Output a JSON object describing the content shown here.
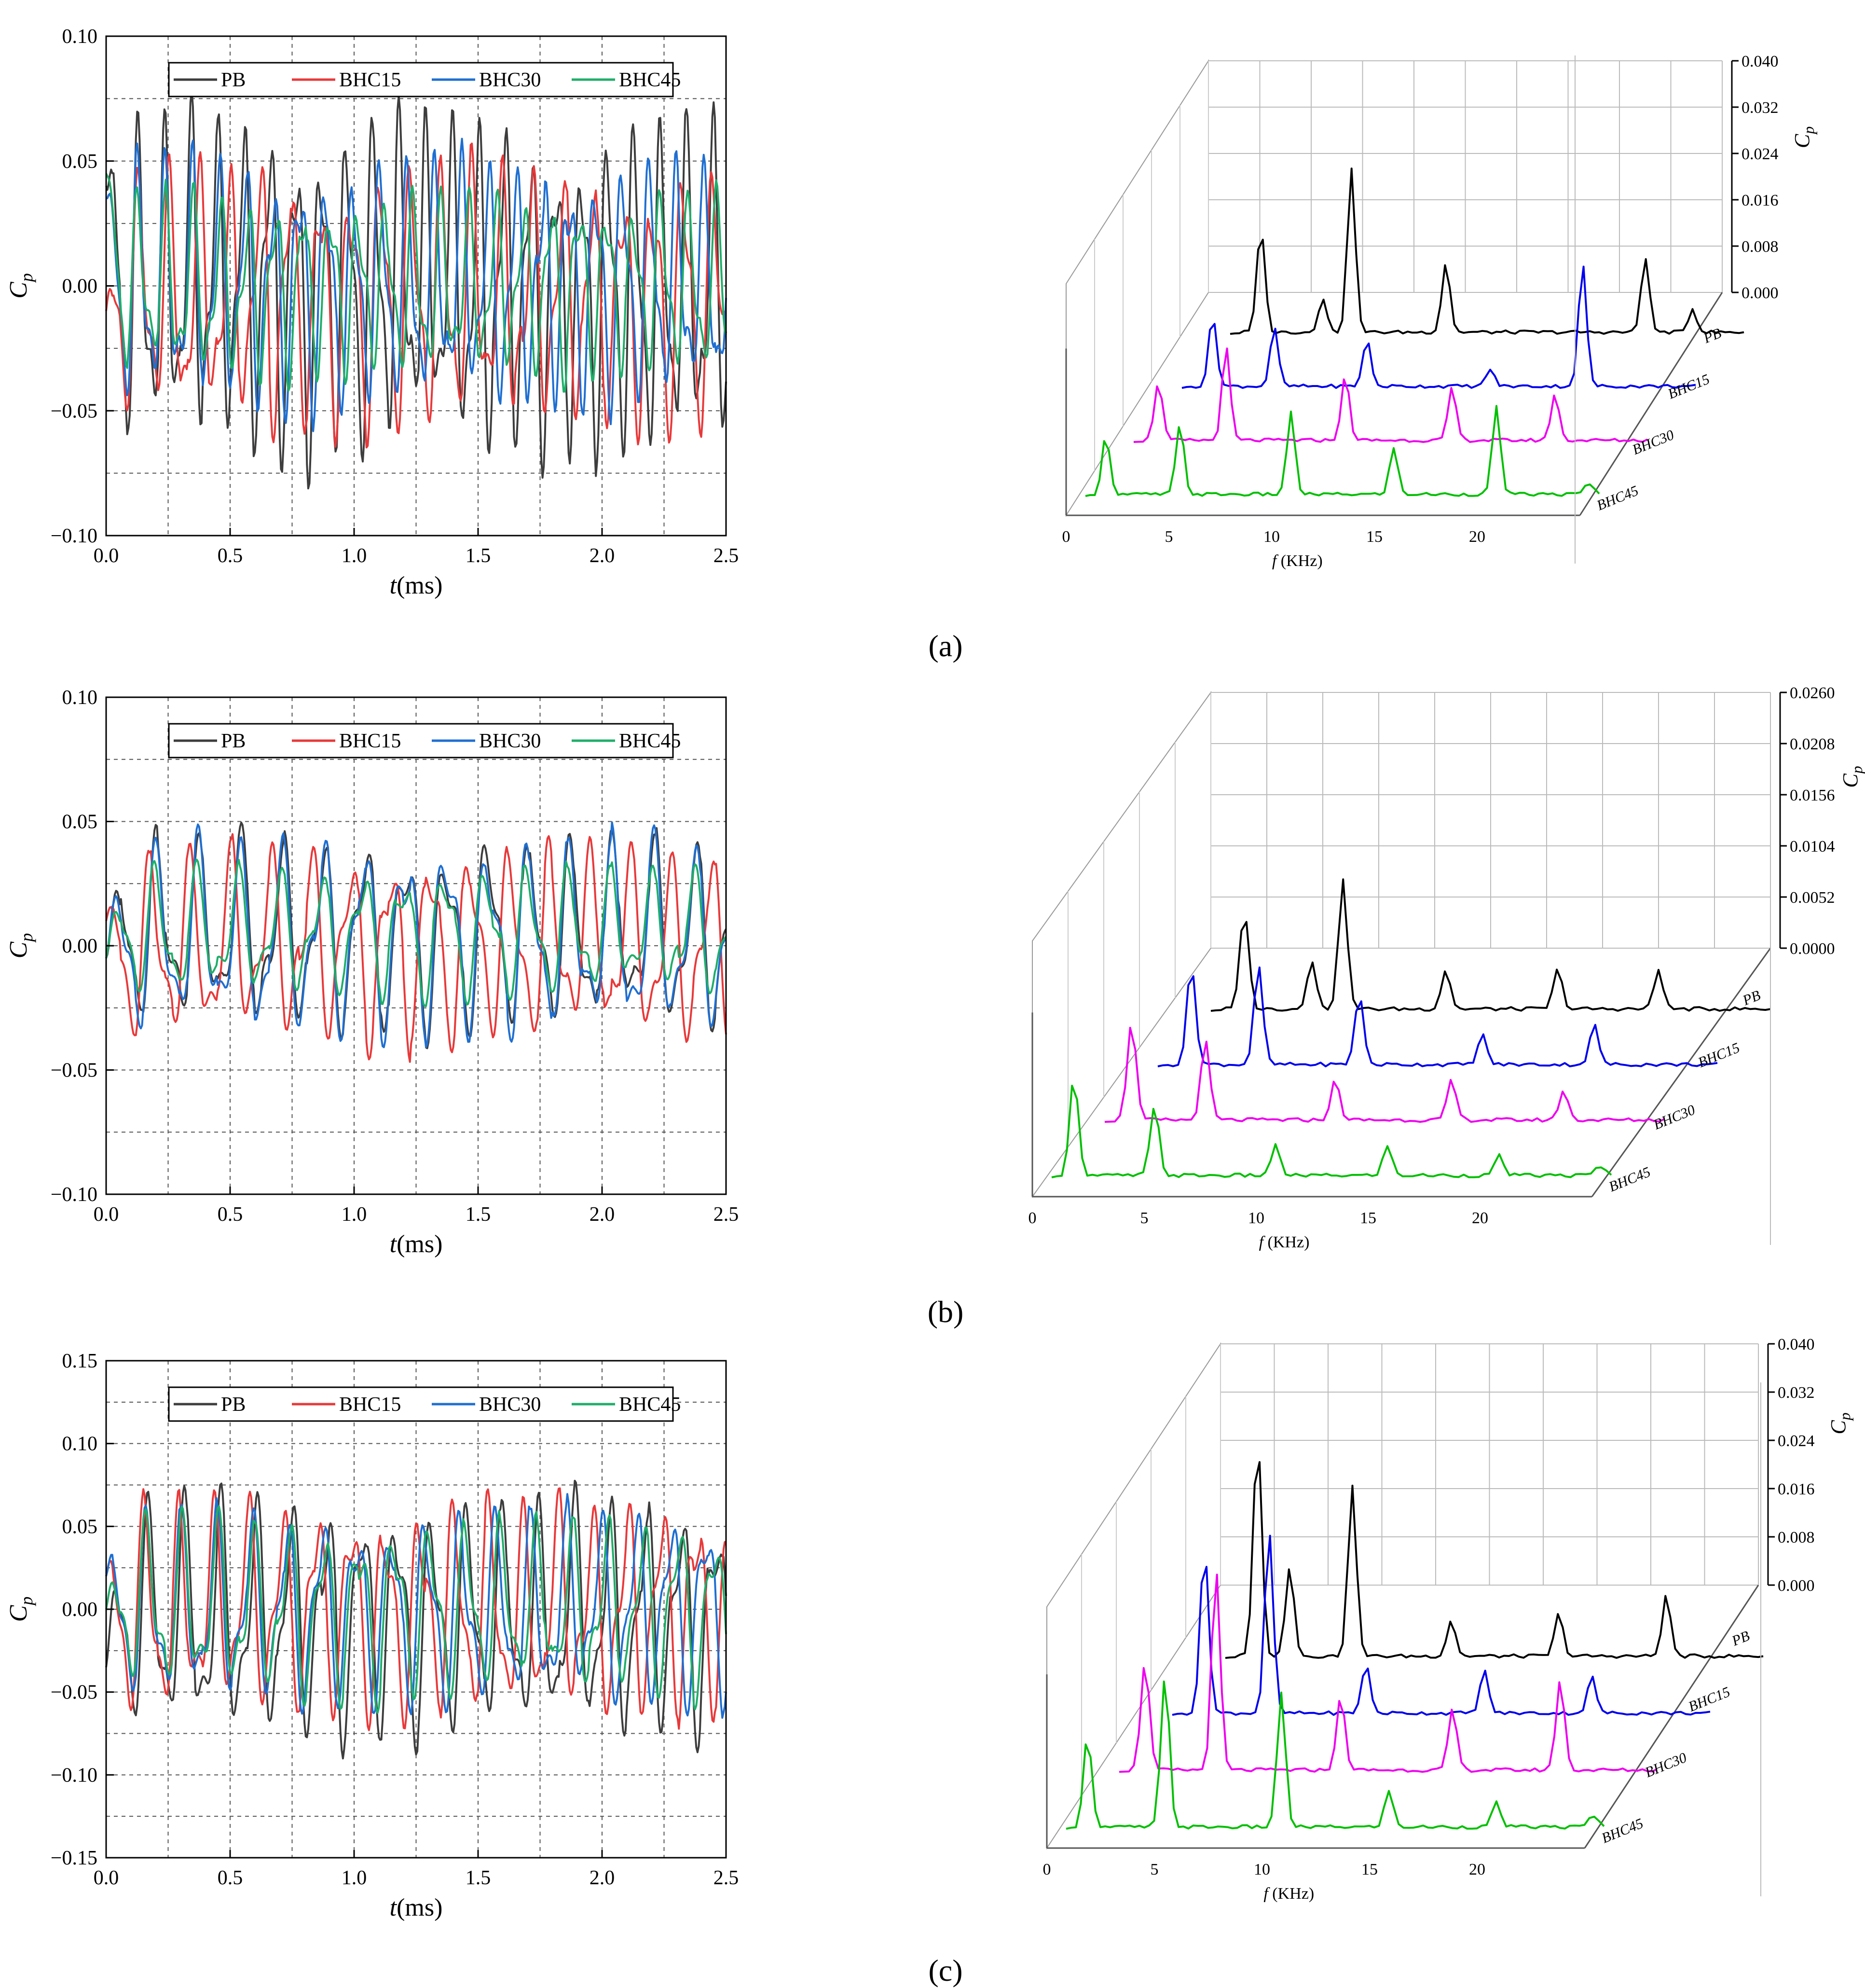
{
  "figure": {
    "panel_captions": [
      "(a)",
      "(b)",
      "(c)"
    ]
  },
  "chart_data": [
    {
      "id": "a-time",
      "type": "line",
      "panel": "a",
      "xlabel_italic": "t",
      "xlabel_unit": "(ms)",
      "ylabel": "C",
      "ylabel_sub": "p",
      "xlim": [
        0,
        2.5
      ],
      "ylim": [
        -0.1,
        0.1
      ],
      "xticks": [
        "0.0",
        "0.5",
        "1.0",
        "1.5",
        "2.0",
        "2.5"
      ],
      "yticks": [
        "-0.10",
        "-0.05",
        "0.00",
        "0.05",
        "0.10"
      ],
      "legend": [
        "PB",
        "BHC15",
        "BHC30",
        "BHC45"
      ],
      "colors": [
        "#3d3d3d",
        "#e8393a",
        "#1f6fd1",
        "#1fae6a"
      ],
      "series": [
        {
          "name": "PB",
          "amp": 0.052,
          "offset": 0.0,
          "freq": 9.5,
          "phase": 0.0,
          "start": 0.04
        },
        {
          "name": "BHC15",
          "amp": 0.04,
          "offset": -0.005,
          "freq": 8.2,
          "phase": 1.0,
          "start": -0.01
        },
        {
          "name": "BHC30",
          "amp": 0.038,
          "offset": 0.0,
          "freq": 9.2,
          "phase": 0.4,
          "start": 0.035
        },
        {
          "name": "BHC45",
          "amp": 0.028,
          "offset": 0.0,
          "freq": 9.0,
          "phase": 0.6,
          "start": 0.045
        }
      ]
    },
    {
      "id": "a-spectrum",
      "type": "line",
      "panel": "a",
      "xlabel_italic": "f",
      "xlabel_unit": " (KHz)",
      "zlabel": "C",
      "zlabel_sub": "p",
      "xlim": [
        0,
        25
      ],
      "zlim": [
        0,
        0.04
      ],
      "xticks": [
        "0",
        "5",
        "10",
        "15",
        "20"
      ],
      "zticks": [
        "0.040",
        "0.032",
        "0.024",
        "0.016",
        "0.008",
        "0.000"
      ],
      "series_labels": [
        "PB",
        "BHC15",
        "BHC30",
        "BHC45"
      ],
      "colors": [
        "#000000",
        "#0000ee",
        "#ee00ee",
        "#00c000"
      ],
      "peaks": [
        [
          [
            1.5,
            0.018
          ],
          [
            4.5,
            0.006
          ],
          [
            5.9,
            0.028
          ],
          [
            10.5,
            0.012
          ],
          [
            20.2,
            0.013
          ],
          [
            22.5,
            0.004
          ]
        ],
        [
          [
            1.5,
            0.012
          ],
          [
            4.5,
            0.01
          ],
          [
            9.0,
            0.008
          ],
          [
            15.0,
            0.003
          ],
          [
            19.5,
            0.021
          ]
        ],
        [
          [
            1.2,
            0.01
          ],
          [
            4.5,
            0.016
          ],
          [
            10.3,
            0.011
          ],
          [
            15.5,
            0.009
          ],
          [
            20.5,
            0.008
          ]
        ],
        [
          [
            1.0,
            0.01
          ],
          [
            4.6,
            0.012
          ],
          [
            10.0,
            0.014
          ],
          [
            15.0,
            0.008
          ],
          [
            20.0,
            0.015
          ],
          [
            24.5,
            0.002
          ]
        ]
      ]
    },
    {
      "id": "b-time",
      "type": "line",
      "panel": "b",
      "xlabel_italic": "t",
      "xlabel_unit": "(ms)",
      "ylabel": "C",
      "ylabel_sub": "p",
      "xlim": [
        0,
        2.5
      ],
      "ylim": [
        -0.1,
        0.1
      ],
      "xticks": [
        "0.0",
        "0.5",
        "1.0",
        "1.5",
        "2.0",
        "2.5"
      ],
      "yticks": [
        "-0.10",
        "-0.05",
        "0.00",
        "0.05",
        "0.10"
      ],
      "legend": [
        "PB",
        "BHC15",
        "BHC30",
        "BHC45"
      ],
      "colors": [
        "#3d3d3d",
        "#e8393a",
        "#1f6fd1",
        "#1fae6a"
      ],
      "series": [
        {
          "name": "PB",
          "amp": 0.03,
          "offset": 0.005,
          "freq": 6.0,
          "phase": 0.0,
          "start": -0.005
        },
        {
          "name": "BHC15",
          "amp": 0.03,
          "offset": 0.0,
          "freq": 6.2,
          "phase": 0.9,
          "start": 0.01
        },
        {
          "name": "BHC30",
          "amp": 0.03,
          "offset": 0.003,
          "freq": 6.0,
          "phase": 0.1,
          "start": -0.005
        },
        {
          "name": "BHC45",
          "amp": 0.02,
          "offset": 0.005,
          "freq": 6.0,
          "phase": 0.3,
          "start": -0.005
        }
      ]
    },
    {
      "id": "b-spectrum",
      "type": "line",
      "panel": "b",
      "xlabel_italic": "f",
      "xlabel_unit": " (KHz)",
      "zlabel": "C",
      "zlabel_sub": "p",
      "xlim": [
        0,
        25
      ],
      "zlim": [
        0,
        0.026
      ],
      "xticks": [
        "0",
        "5",
        "10",
        "15",
        "20"
      ],
      "zticks": [
        "0.0260",
        "0.0208",
        "0.0156",
        "0.0104",
        "0.0052",
        "0.0000"
      ],
      "series_labels": [
        "PB",
        "BHC15",
        "BHC30",
        "BHC45"
      ],
      "colors": [
        "#000000",
        "#0000ee",
        "#ee00ee",
        "#00c000"
      ],
      "peaks": [
        [
          [
            1.5,
            0.01
          ],
          [
            4.5,
            0.005
          ],
          [
            5.9,
            0.013
          ],
          [
            10.5,
            0.004
          ],
          [
            15.5,
            0.004
          ],
          [
            20.0,
            0.004
          ]
        ],
        [
          [
            1.5,
            0.01
          ],
          [
            4.5,
            0.01
          ],
          [
            9.0,
            0.007
          ],
          [
            14.5,
            0.003
          ],
          [
            19.5,
            0.004
          ]
        ],
        [
          [
            1.2,
            0.01
          ],
          [
            4.5,
            0.008
          ],
          [
            10.3,
            0.004
          ],
          [
            15.5,
            0.004
          ],
          [
            20.5,
            0.003
          ]
        ],
        [
          [
            1.0,
            0.01
          ],
          [
            4.6,
            0.007
          ],
          [
            10.0,
            0.003
          ],
          [
            15.0,
            0.003
          ],
          [
            20.0,
            0.002
          ],
          [
            24.5,
            0.001
          ]
        ]
      ]
    },
    {
      "id": "c-time",
      "type": "line",
      "panel": "c",
      "xlabel_italic": "t",
      "xlabel_unit": "(ms)",
      "ylabel": "C",
      "ylabel_sub": "p",
      "xlim": [
        0,
        2.5
      ],
      "ylim": [
        -0.15,
        0.15
      ],
      "xticks": [
        "0.0",
        "0.5",
        "1.0",
        "1.5",
        "2.0",
        "2.5"
      ],
      "yticks": [
        "-0.15",
        "-0.10",
        "-0.05",
        "0.00",
        "0.05",
        "0.10",
        "0.15"
      ],
      "legend": [
        "PB",
        "BHC15",
        "BHC30",
        "BHC45"
      ],
      "colors": [
        "#3d3d3d",
        "#e8393a",
        "#1f6fd1",
        "#1fae6a"
      ],
      "series": [
        {
          "name": "PB",
          "amp": 0.055,
          "offset": -0.005,
          "freq": 7.0,
          "phase": 0.2,
          "start": -0.035
        },
        {
          "name": "BHC15",
          "amp": 0.05,
          "offset": 0.0,
          "freq": 7.2,
          "phase": 0.8,
          "start": 0.02
        },
        {
          "name": "BHC30",
          "amp": 0.045,
          "offset": 0.0,
          "freq": 7.1,
          "phase": 0.5,
          "start": 0.02
        },
        {
          "name": "BHC45",
          "amp": 0.04,
          "offset": 0.0,
          "freq": 7.0,
          "phase": 0.6,
          "start": 0.0
        }
      ]
    },
    {
      "id": "c-spectrum",
      "type": "line",
      "panel": "c",
      "xlabel_italic": "f",
      "xlabel_unit": " (KHz)",
      "zlabel": "C",
      "zlabel_sub": "p",
      "xlim": [
        0,
        25
      ],
      "zlim": [
        0,
        0.04
      ],
      "xticks": [
        "0",
        "5",
        "10",
        "15",
        "20"
      ],
      "zticks": [
        "0.040",
        "0.032",
        "0.024",
        "0.016",
        "0.008",
        "0.000"
      ],
      "series_labels": [
        "PB",
        "BHC15",
        "BHC30",
        "BHC45"
      ],
      "colors": [
        "#000000",
        "#0000ee",
        "#ee00ee",
        "#00c000"
      ],
      "peaks": [
        [
          [
            1.5,
            0.036
          ],
          [
            3.0,
            0.015
          ],
          [
            5.9,
            0.028
          ],
          [
            10.5,
            0.006
          ],
          [
            15.5,
            0.007
          ],
          [
            20.5,
            0.01
          ]
        ],
        [
          [
            1.5,
            0.027
          ],
          [
            4.5,
            0.03
          ],
          [
            9.0,
            0.008
          ],
          [
            14.5,
            0.007
          ],
          [
            19.5,
            0.006
          ]
        ],
        [
          [
            1.2,
            0.018
          ],
          [
            4.5,
            0.033
          ],
          [
            10.3,
            0.012
          ],
          [
            15.5,
            0.01
          ],
          [
            20.5,
            0.015
          ]
        ],
        [
          [
            1.0,
            0.015
          ],
          [
            4.6,
            0.025
          ],
          [
            10.0,
            0.022
          ],
          [
            15.0,
            0.006
          ],
          [
            20.0,
            0.004
          ],
          [
            24.5,
            0.002
          ]
        ]
      ]
    }
  ]
}
